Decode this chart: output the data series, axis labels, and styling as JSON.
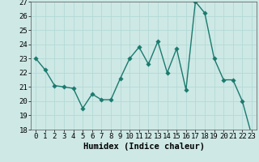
{
  "x": [
    0,
    1,
    2,
    3,
    4,
    5,
    6,
    7,
    8,
    9,
    10,
    11,
    12,
    13,
    14,
    15,
    16,
    17,
    18,
    19,
    20,
    21,
    22,
    23
  ],
  "y": [
    23.0,
    22.2,
    21.1,
    21.0,
    20.9,
    19.5,
    20.5,
    20.1,
    20.1,
    21.6,
    23.0,
    23.8,
    22.6,
    24.2,
    22.0,
    23.7,
    20.8,
    27.0,
    26.2,
    23.0,
    21.5,
    21.5,
    20.0,
    17.6
  ],
  "line_color": "#1a7a6e",
  "marker_color": "#1a7a6e",
  "bg_color": "#cde8e5",
  "grid_color": "#b0d8d4",
  "xlabel": "Humidex (Indice chaleur)",
  "ylim": [
    18,
    27
  ],
  "yticks": [
    18,
    19,
    20,
    21,
    22,
    23,
    24,
    25,
    26,
    27
  ],
  "xticks": [
    0,
    1,
    2,
    3,
    4,
    5,
    6,
    7,
    8,
    9,
    10,
    11,
    12,
    13,
    14,
    15,
    16,
    17,
    18,
    19,
    20,
    21,
    22,
    23
  ],
  "xlabel_fontsize": 7.5,
  "tick_fontsize": 6.5,
  "linewidth": 1.0,
  "markersize": 2.8
}
